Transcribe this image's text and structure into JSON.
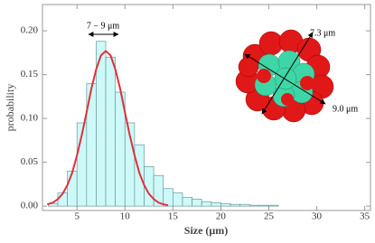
{
  "chart_data": {
    "type": "histogram",
    "xlabel": "Size (μm)",
    "ylabel": "probability",
    "bins": [
      2,
      3,
      4,
      5,
      6,
      7,
      8,
      9,
      10,
      11,
      12,
      13,
      14,
      15,
      16,
      17,
      18,
      19,
      20,
      21,
      22,
      23,
      24,
      25,
      26
    ],
    "values": [
      0.003,
      0.015,
      0.04,
      0.095,
      0.14,
      0.188,
      0.17,
      0.13,
      0.095,
      0.07,
      0.045,
      0.035,
      0.02,
      0.015,
      0.01,
      0.008,
      0.005,
      0.004,
      0.003,
      0.002,
      0.002,
      0.001,
      0.001,
      0.001
    ],
    "color": "#cdf9f9",
    "fit": {
      "type": "line",
      "color": "#e0303a",
      "x": [
        1.9,
        2.5,
        3,
        3.5,
        4,
        4.5,
        5,
        5.5,
        6,
        6.5,
        7,
        7.5,
        8,
        8.5,
        9,
        9.5,
        10,
        10.5,
        11,
        11.5,
        12,
        12.5,
        13,
        13.5,
        14,
        14.5
      ],
      "values": [
        0.002,
        0.004,
        0.008,
        0.014,
        0.024,
        0.038,
        0.058,
        0.081,
        0.107,
        0.134,
        0.156,
        0.172,
        0.177,
        0.172,
        0.156,
        0.134,
        0.107,
        0.081,
        0.058,
        0.038,
        0.024,
        0.014,
        0.008,
        0.004,
        0.002,
        0.001
      ]
    },
    "xlim": [
      1.4,
      35.6
    ],
    "ylim": [
      -0.005,
      0.23
    ],
    "xticks": [
      5,
      10,
      15,
      20,
      25,
      30,
      35
    ],
    "yticks": [
      {
        "value": 0,
        "label": "0.00"
      },
      {
        "value": 0.05,
        "label": "0.05"
      },
      {
        "value": 0.1,
        "label": "0.10"
      },
      {
        "value": 0.15,
        "label": "0.15"
      },
      {
        "value": 0.2,
        "label": "0.20"
      }
    ],
    "annotations": [
      "7 − 9 μm",
      "7.3 μm",
      "9.0 μm"
    ]
  }
}
